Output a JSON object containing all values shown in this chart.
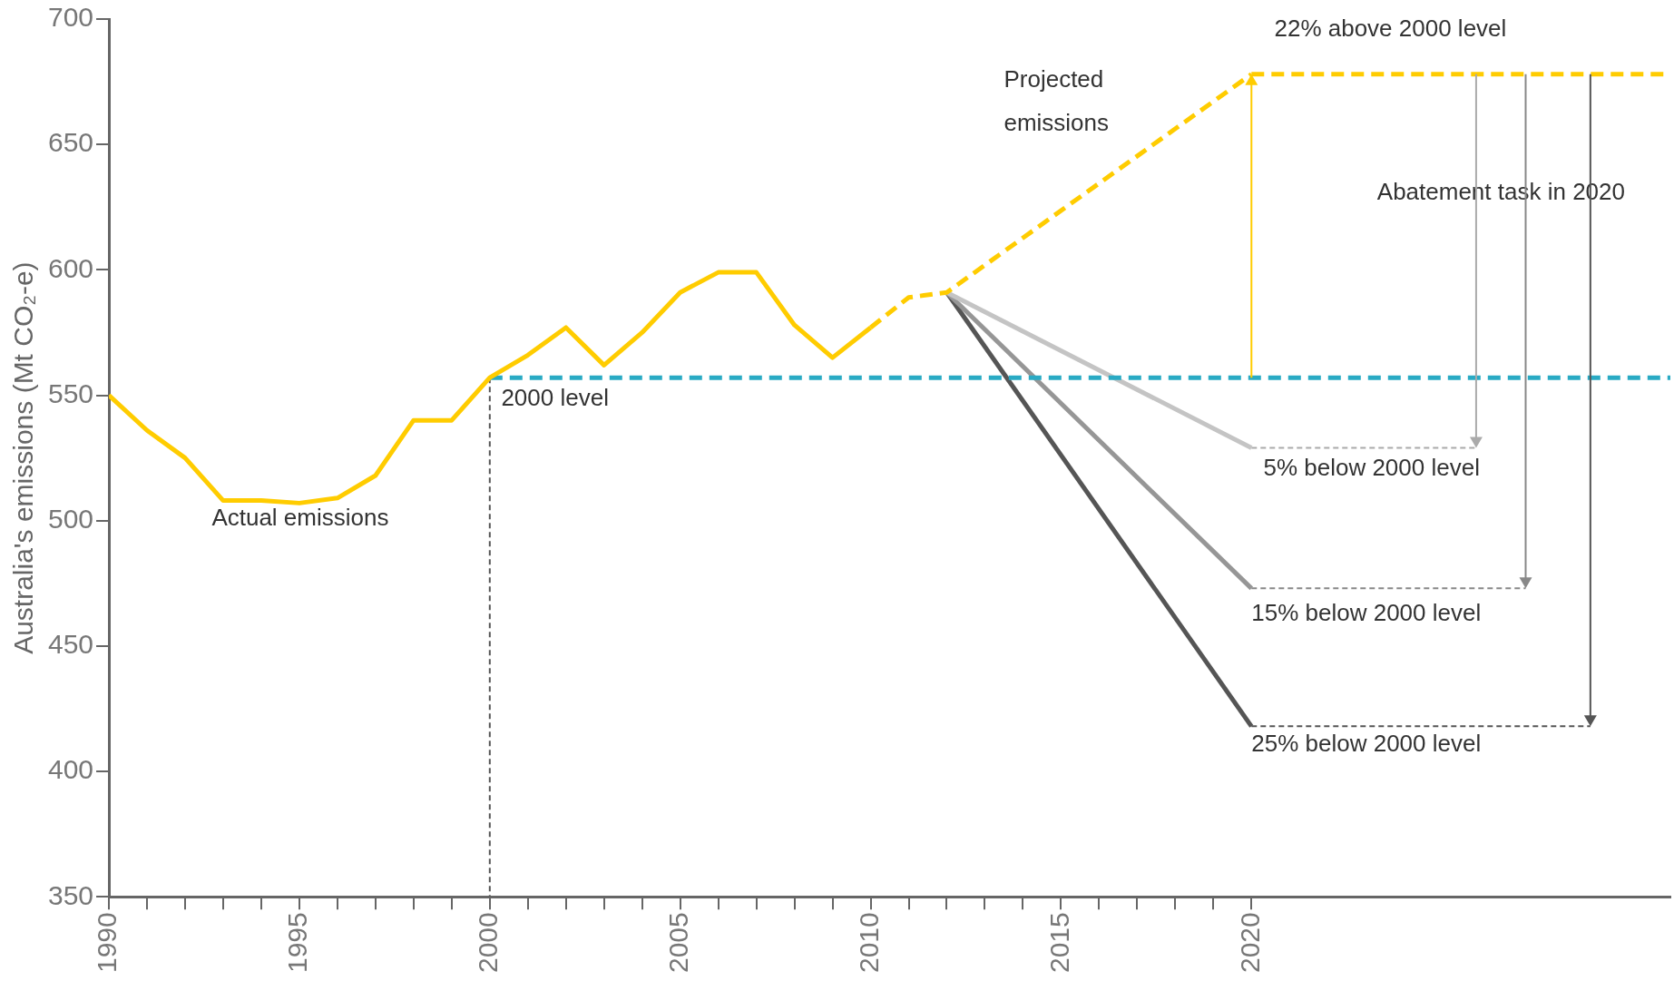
{
  "chart_data": {
    "type": "line",
    "ylabel": "Australia's emissions (Mt CO₂-e)",
    "xlim": [
      1990,
      2031
    ],
    "ylim": [
      350,
      700
    ],
    "yticks": [
      350,
      400,
      450,
      500,
      550,
      600,
      650,
      700
    ],
    "xticks": [
      1990,
      {
        "value": 1991,
        "label": null
      },
      {
        "value": 1992,
        "label": null
      },
      {
        "value": 1993,
        "label": null
      },
      {
        "value": 1994,
        "label": null
      },
      1995,
      {
        "value": 1996,
        "label": null
      },
      {
        "value": 1997,
        "label": null
      },
      {
        "value": 1998,
        "label": null
      },
      {
        "value": 1999,
        "label": null
      },
      2000,
      {
        "value": 2001,
        "label": null
      },
      {
        "value": 2002,
        "label": null
      },
      {
        "value": 2003,
        "label": null
      },
      {
        "value": 2004,
        "label": null
      },
      2005,
      {
        "value": 2006,
        "label": null
      },
      {
        "value": 2007,
        "label": null
      },
      {
        "value": 2008,
        "label": null
      },
      {
        "value": 2009,
        "label": null
      },
      2010,
      {
        "value": 2011,
        "label": null
      },
      {
        "value": 2012,
        "label": null
      },
      {
        "value": 2013,
        "label": null
      },
      {
        "value": 2014,
        "label": null
      },
      2015,
      {
        "value": 2016,
        "label": null
      },
      {
        "value": 2017,
        "label": null
      },
      {
        "value": 2018,
        "label": null
      },
      {
        "value": 2019,
        "label": null
      },
      2020
    ],
    "grid": false,
    "legend": false,
    "series": [
      {
        "color": "#ffcc00",
        "line_style": "solid",
        "x": [
          1990,
          1991,
          1992,
          1993,
          1994,
          1995,
          1996,
          1997,
          1998,
          1999,
          2000,
          2001,
          2002,
          2003,
          2004,
          2005,
          2006,
          2007,
          2008,
          2009,
          2010
        ],
        "values": [
          550,
          536,
          525,
          508,
          508,
          507,
          509,
          518,
          540,
          540,
          557,
          566,
          577,
          562,
          575,
          591,
          599,
          599,
          578,
          565,
          577
        ]
      },
      {
        "color": "#ffcc00",
        "line_style": "dashed",
        "x": [
          2010,
          2011,
          2012,
          2020
        ],
        "values": [
          577,
          589,
          591,
          678
        ]
      },
      {
        "color": "#ffcc00",
        "line_style": "dashed",
        "x": [
          2020,
          2031
        ],
        "values": [
          678,
          678
        ]
      },
      {
        "color": "#29aac4",
        "line_style": "dashed",
        "x": [
          2000,
          2031
        ],
        "values": [
          557,
          557
        ]
      },
      {
        "color": "#555555",
        "line_style": "dotted",
        "x": [
          2000,
          2000
        ],
        "values": [
          557,
          350
        ]
      },
      {
        "color": "#c4c4c4",
        "line_style": "solid",
        "x": [
          2012,
          2020
        ],
        "values": [
          591,
          529
        ]
      },
      {
        "color": "#969696",
        "line_style": "solid",
        "x": [
          2012,
          2020
        ],
        "values": [
          591,
          473
        ]
      },
      {
        "color": "#555555",
        "line_style": "solid",
        "x": [
          2012,
          2020
        ],
        "values": [
          591,
          418
        ]
      },
      {
        "color": "#aaaaaa",
        "line_style": "dotted",
        "x": [
          2020,
          2025.9
        ],
        "values": [
          529,
          529
        ]
      },
      {
        "color": "#888888",
        "line_style": "dotted",
        "x": [
          2020,
          2027.2
        ],
        "values": [
          473,
          473
        ]
      },
      {
        "color": "#555555",
        "line_style": "dotted",
        "x": [
          2020,
          2028.9
        ],
        "values": [
          418,
          418
        ]
      }
    ],
    "annotations": [
      "Actual emissions",
      "2000 level",
      "Projected emissions",
      "22% above 2000 level",
      "Abatement task in 2020",
      {
        "text": "5% below 2000 level",
        "x": 2025.9,
        "y": 529
      },
      "15% below 2000 level",
      "25% below 2000 level"
    ]
  }
}
